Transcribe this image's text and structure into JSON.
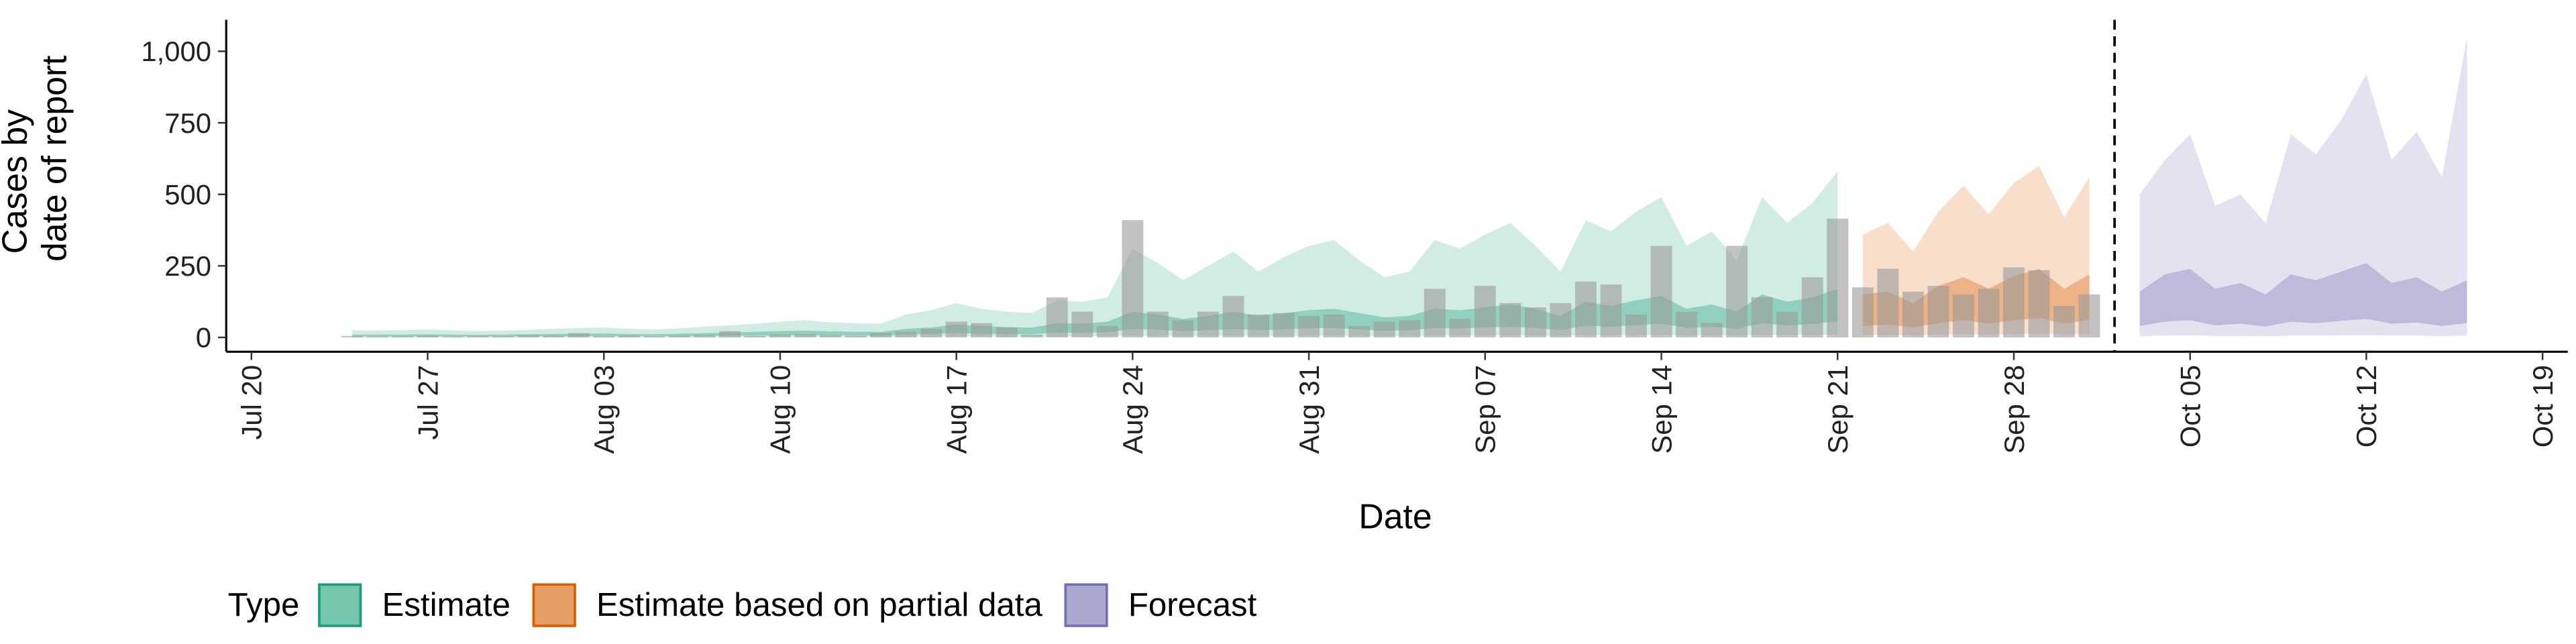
{
  "chart_data": {
    "type": "bar",
    "xlabel": "Date",
    "ylabel": [
      "Cases by",
      "date of report"
    ],
    "legend_title": "Type",
    "legend_position": "bottom",
    "xlim": [
      "Jul 19",
      "Oct 20"
    ],
    "xticks": [
      "Jul 20",
      "Jul 27",
      "Aug 03",
      "Aug 10",
      "Aug 17",
      "Aug 24",
      "Aug 31",
      "Sep 07",
      "Sep 14",
      "Sep 21",
      "Sep 28",
      "Oct 05",
      "Oct 12",
      "Oct 19"
    ],
    "ylim": [
      -50,
      1110
    ],
    "yticks": [
      0,
      250,
      500,
      750,
      {
        "value": 1000,
        "label": "1,000"
      }
    ],
    "forecast_date": "Oct 2",
    "bars": {
      "color": "#999999",
      "x": [
        "Jul 24",
        "Jul 25",
        "Jul 26",
        "Jul 27",
        "Jul 28",
        "Jul 29",
        "Jul 30",
        "Jul 31",
        "Aug 01",
        "Aug 02",
        "Aug 03",
        "Aug 04",
        "Aug 05",
        "Aug 06",
        "Aug 07",
        "Aug 08",
        "Aug 09",
        "Aug 10",
        "Aug 11",
        "Aug 12",
        "Aug 13",
        "Aug 14",
        "Aug 15",
        "Aug 16",
        "Aug 17",
        "Aug 18",
        "Aug 19",
        "Aug 20",
        "Aug 21",
        "Aug 22",
        "Aug 23",
        "Aug 24",
        "Aug 25",
        "Aug 26",
        "Aug 27",
        "Aug 28",
        "Aug 29",
        "Aug 30",
        "Aug 31",
        "Sep 01",
        "Sep 02",
        "Sep 03",
        "Sep 04",
        "Sep 05",
        "Sep 06",
        "Sep 07",
        "Sep 08",
        "Sep 09",
        "Sep 10",
        "Sep 11",
        "Sep 12",
        "Sep 13",
        "Sep 14",
        "Sep 15",
        "Sep 16",
        "Sep 17",
        "Sep 18",
        "Sep 19",
        "Sep 20",
        "Sep 21",
        "Sep 22",
        "Sep 23",
        "Sep 24",
        "Sep 25",
        "Sep 26",
        "Sep 27",
        "Sep 28",
        "Sep 29",
        "Sep 30",
        "Oct 01"
      ],
      "values": [
        5,
        3,
        4,
        6,
        3,
        5,
        4,
        8,
        6,
        15,
        5,
        7,
        4,
        6,
        8,
        22,
        5,
        10,
        12,
        8,
        6,
        15,
        20,
        30,
        55,
        50,
        35,
        10,
        140,
        90,
        40,
        410,
        90,
        60,
        90,
        145,
        80,
        85,
        75,
        80,
        40,
        55,
        60,
        170,
        65,
        180,
        120,
        105,
        120,
        195,
        185,
        80,
        320,
        90,
        50,
        320,
        140,
        90,
        210,
        415,
        175,
        240,
        160,
        180,
        150,
        170,
        245,
        235,
        110,
        150
      ]
    },
    "series": [
      {
        "name": "Estimate",
        "color": "#1b9e77",
        "x": [
          "Jul 24",
          "Jul 25",
          "Jul 26",
          "Jul 27",
          "Jul 28",
          "Jul 29",
          "Jul 30",
          "Jul 31",
          "Aug 01",
          "Aug 02",
          "Aug 03",
          "Aug 04",
          "Aug 05",
          "Aug 06",
          "Aug 07",
          "Aug 08",
          "Aug 09",
          "Aug 10",
          "Aug 11",
          "Aug 12",
          "Aug 13",
          "Aug 14",
          "Aug 15",
          "Aug 16",
          "Aug 17",
          "Aug 18",
          "Aug 19",
          "Aug 20",
          "Aug 21",
          "Aug 22",
          "Aug 23",
          "Aug 24",
          "Aug 25",
          "Aug 26",
          "Aug 27",
          "Aug 28",
          "Aug 29",
          "Aug 30",
          "Aug 31",
          "Sep 01",
          "Sep 02",
          "Sep 03",
          "Sep 04",
          "Sep 05",
          "Sep 06",
          "Sep 07",
          "Sep 08",
          "Sep 09",
          "Sep 10",
          "Sep 11",
          "Sep 12",
          "Sep 13",
          "Sep 14",
          "Sep 15",
          "Sep 16",
          "Sep 17",
          "Sep 18",
          "Sep 19",
          "Sep 20",
          "Sep 21"
        ],
        "upper_90": [
          25,
          24,
          26,
          28,
          25,
          22,
          24,
          27,
          30,
          33,
          35,
          30,
          28,
          32,
          38,
          42,
          48,
          55,
          60,
          52,
          50,
          48,
          80,
          95,
          120,
          100,
          90,
          85,
          130,
          125,
          140,
          310,
          260,
          200,
          250,
          300,
          230,
          280,
          320,
          340,
          270,
          210,
          230,
          340,
          310,
          360,
          400,
          320,
          230,
          410,
          370,
          440,
          490,
          320,
          370,
          270,
          490,
          400,
          470,
          580
        ],
        "lower_90": [
          0,
          0,
          0,
          0,
          0,
          0,
          0,
          0,
          0,
          0,
          0,
          0,
          0,
          0,
          0,
          1,
          1,
          1,
          1,
          1,
          1,
          1,
          2,
          2,
          3,
          3,
          2,
          2,
          3,
          3,
          4,
          6,
          5,
          4,
          5,
          6,
          5,
          5,
          6,
          6,
          5,
          4,
          5,
          6,
          6,
          7,
          7,
          6,
          5,
          8,
          7,
          8,
          9,
          6,
          7,
          6,
          9,
          8,
          9,
          10
        ],
        "upper_50": [
          10,
          10,
          10,
          11,
          10,
          9,
          10,
          11,
          12,
          13,
          14,
          12,
          11,
          13,
          15,
          17,
          19,
          22,
          24,
          21,
          20,
          19,
          30,
          35,
          45,
          40,
          36,
          34,
          50,
          48,
          55,
          90,
          80,
          65,
          75,
          90,
          75,
          85,
          95,
          100,
          85,
          70,
          75,
          100,
          95,
          105,
          115,
          100,
          75,
          125,
          110,
          130,
          145,
          100,
          115,
          90,
          150,
          125,
          140,
          170
        ],
        "lower_50": [
          3,
          3,
          3,
          4,
          3,
          3,
          3,
          4,
          4,
          4,
          5,
          4,
          4,
          4,
          5,
          6,
          6,
          7,
          8,
          7,
          7,
          6,
          10,
          12,
          15,
          13,
          12,
          11,
          17,
          16,
          18,
          30,
          27,
          22,
          25,
          30,
          25,
          28,
          32,
          33,
          28,
          23,
          25,
          33,
          32,
          35,
          38,
          33,
          25,
          42,
          37,
          43,
          48,
          33,
          38,
          30,
          50,
          42,
          47,
          57
        ]
      },
      {
        "name": "Estimate based on partial data",
        "color": "#d95f02",
        "x": [
          "Sep 22",
          "Sep 23",
          "Sep 24",
          "Sep 25",
          "Sep 26",
          "Sep 27",
          "Sep 28",
          "Sep 29",
          "Sep 30",
          "Oct 01"
        ],
        "upper_90": [
          360,
          400,
          300,
          440,
          530,
          430,
          540,
          600,
          420,
          560
        ],
        "lower_90": [
          8,
          9,
          7,
          10,
          12,
          10,
          12,
          14,
          10,
          12
        ],
        "upper_50": [
          150,
          160,
          120,
          180,
          210,
          170,
          215,
          240,
          170,
          220
        ],
        "lower_50": [
          40,
          45,
          35,
          50,
          60,
          48,
          60,
          68,
          48,
          62
        ]
      },
      {
        "name": "Forecast",
        "color": "#7570b3",
        "x": [
          "Oct 03",
          "Oct 04",
          "Oct 05",
          "Oct 06",
          "Oct 07",
          "Oct 08",
          "Oct 09",
          "Oct 10",
          "Oct 11",
          "Oct 12",
          "Oct 13",
          "Oct 14",
          "Oct 15",
          "Oct 16"
        ],
        "upper_90": [
          500,
          620,
          710,
          460,
          500,
          400,
          710,
          640,
          760,
          920,
          620,
          720,
          560,
          1050
        ],
        "lower_90": [
          5,
          6,
          7,
          5,
          5,
          4,
          6,
          6,
          7,
          8,
          6,
          6,
          5,
          6
        ],
        "upper_50": [
          160,
          220,
          240,
          170,
          190,
          150,
          220,
          200,
          230,
          260,
          190,
          210,
          160,
          200
        ],
        "lower_50": [
          40,
          55,
          60,
          42,
          48,
          38,
          55,
          50,
          58,
          65,
          48,
          52,
          40,
          50
        ]
      }
    ]
  }
}
